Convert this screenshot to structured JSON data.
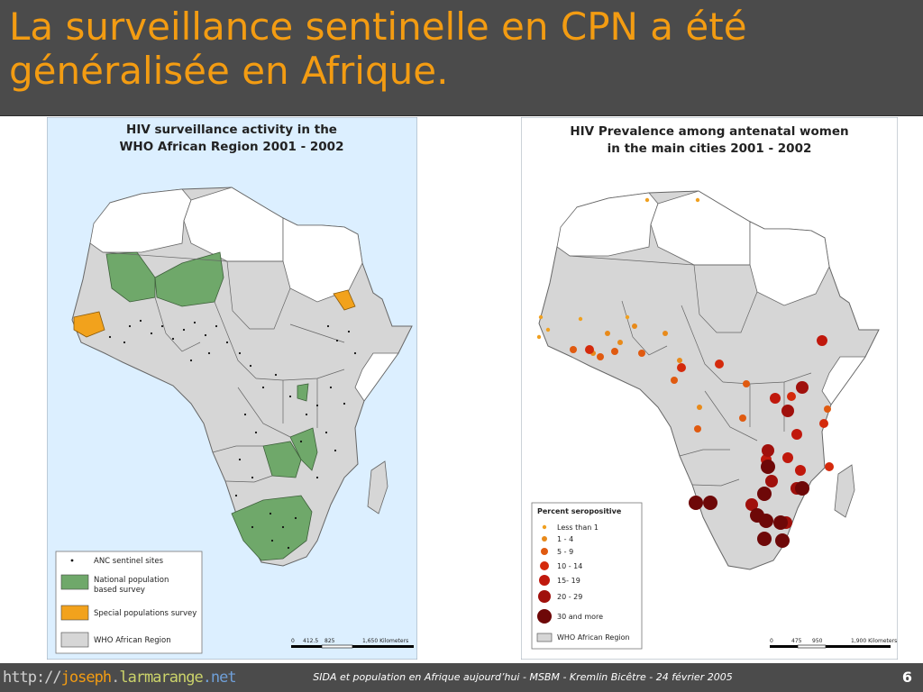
{
  "slide": {
    "title": "La surveillance sentinelle en CPN a été généralisée en Afrique.",
    "number": "6"
  },
  "footer": {
    "url_protocol": "http://",
    "url_part1": "joseph",
    "url_dot": ".",
    "url_part2": "larmarange",
    "url_part3": ".net",
    "caption": "SIDA et population en Afrique aujourd’hui - MSBM - Kremlin Bicêtre - 24 février 2005"
  },
  "colors": {
    "title": "#f39c12",
    "bar": "#4b4b4b",
    "ocean": "#dcefff",
    "who_region": "#d6d6d6",
    "outside_region": "#ffffff",
    "national_survey": "#6fa86a",
    "special_survey": "#f2a21c"
  },
  "map_left": {
    "title_line1": "HIV surveillance activity in the",
    "title_line2": "WHO African Region 2001 - 2002",
    "legend": {
      "items": [
        {
          "label": "ANC sentinel sites",
          "symbol": "dot"
        },
        {
          "label": "National population",
          "label2": "based survey",
          "symbol": "national_survey"
        },
        {
          "label": "Special populations survey",
          "symbol": "special_survey"
        },
        {
          "label": "WHO African Region",
          "symbol": "who_region"
        }
      ]
    },
    "scale": {
      "ticks": [
        "0",
        "412.5",
        "825",
        "1,650 Kilometers"
      ]
    }
  },
  "map_right": {
    "title_line1": "HIV Prevalence among antenatal women",
    "title_line2": "in the main cities 2001 - 2002",
    "legend": {
      "title": "Percent seropositive",
      "items": [
        {
          "label": "Less than 1",
          "color": "#f0a020",
          "size": "xs"
        },
        {
          "label": "1 - 4",
          "color": "#e88a1a",
          "size": "s"
        },
        {
          "label": "5 - 9",
          "color": "#e05a10",
          "size": "m"
        },
        {
          "label": "10 - 14",
          "color": "#d42a0c",
          "size": "m"
        },
        {
          "label": "15- 19",
          "color": "#c0180c",
          "size": "l"
        },
        {
          "label": "20 - 29",
          "color": "#a0100c",
          "size": "xl"
        },
        {
          "label": "30 and more",
          "color": "#6e0808",
          "size": "xxl"
        }
      ],
      "region_label": "WHO African Region"
    },
    "scale": {
      "ticks": [
        "0",
        "475",
        "950",
        "1,900 Kilometers"
      ]
    }
  }
}
